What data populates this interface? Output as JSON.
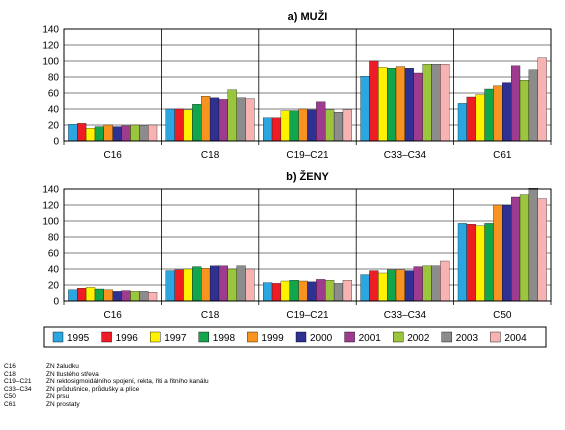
{
  "chart_data": [
    {
      "type": "bar",
      "title": "a) MUŽI",
      "categories": [
        "C16",
        "C18",
        "C19–C21",
        "C33–C34",
        "C61"
      ],
      "ylim": [
        0,
        140
      ],
      "yticks": [
        0,
        20,
        40,
        60,
        80,
        100,
        120,
        140
      ],
      "grid": true,
      "series": [
        {
          "name": "1995",
          "values": [
            21,
            40,
            29,
            81,
            47
          ]
        },
        {
          "name": "1996",
          "values": [
            22,
            40,
            29,
            100,
            55
          ]
        },
        {
          "name": "1997",
          "values": [
            16,
            39,
            38,
            92,
            58
          ]
        },
        {
          "name": "1998",
          "values": [
            18,
            46,
            38,
            91,
            65
          ]
        },
        {
          "name": "1999",
          "values": [
            20,
            56,
            40,
            93,
            69
          ]
        },
        {
          "name": "2000",
          "values": [
            18,
            54,
            39,
            91,
            73
          ]
        },
        {
          "name": "2001",
          "values": [
            19,
            52,
            49,
            85,
            94
          ]
        },
        {
          "name": "2002",
          "values": [
            20,
            64,
            39,
            96,
            76
          ]
        },
        {
          "name": "2003",
          "values": [
            19,
            54,
            36,
            96,
            89
          ]
        },
        {
          "name": "2004",
          "values": [
            20,
            53,
            39,
            96,
            104
          ]
        }
      ]
    },
    {
      "type": "bar",
      "title": "b) ŽENY",
      "categories": [
        "C16",
        "C18",
        "C19–C21",
        "C33–C34",
        "C50"
      ],
      "ylim": [
        0,
        140
      ],
      "yticks": [
        0,
        20,
        40,
        60,
        80,
        100,
        120,
        140
      ],
      "grid": true,
      "series": [
        {
          "name": "1995",
          "values": [
            14,
            38,
            23,
            33,
            97
          ]
        },
        {
          "name": "1996",
          "values": [
            16,
            39,
            22,
            38,
            96
          ]
        },
        {
          "name": "1997",
          "values": [
            17,
            40,
            25,
            35,
            94
          ]
        },
        {
          "name": "1998",
          "values": [
            15,
            43,
            26,
            39,
            97
          ]
        },
        {
          "name": "1999",
          "values": [
            14,
            41,
            25,
            39,
            120
          ]
        },
        {
          "name": "2000",
          "values": [
            12,
            44,
            24,
            38,
            120
          ]
        },
        {
          "name": "2001",
          "values": [
            13,
            44,
            27,
            43,
            130
          ]
        },
        {
          "name": "2002",
          "values": [
            12,
            40,
            26,
            44,
            133
          ]
        },
        {
          "name": "2003",
          "values": [
            12,
            44,
            22,
            44,
            141
          ]
        },
        {
          "name": "2004",
          "values": [
            11,
            40,
            26,
            50,
            128
          ]
        }
      ]
    }
  ],
  "colors": [
    "#2ba6e0",
    "#ee1c24",
    "#fff200",
    "#13a54b",
    "#f7931e",
    "#2e3192",
    "#9e3b8f",
    "#9bc53d",
    "#8c8c8c",
    "#f7b2b2"
  ],
  "notes": [
    {
      "code": "C16",
      "text": "ZN žaludku"
    },
    {
      "code": "C18",
      "text": "ZN tlustého střeva"
    },
    {
      "code": "C19–C21",
      "text": "ZN rektosigmoidálního spojení, rekta, řiti a řitního kanálu"
    },
    {
      "code": "C33–C34",
      "text": "ZN průdušnice, průdušky a plíce"
    },
    {
      "code": "C50",
      "text": "ZN prsu"
    },
    {
      "code": "C61",
      "text": "ZN prostaty"
    }
  ]
}
